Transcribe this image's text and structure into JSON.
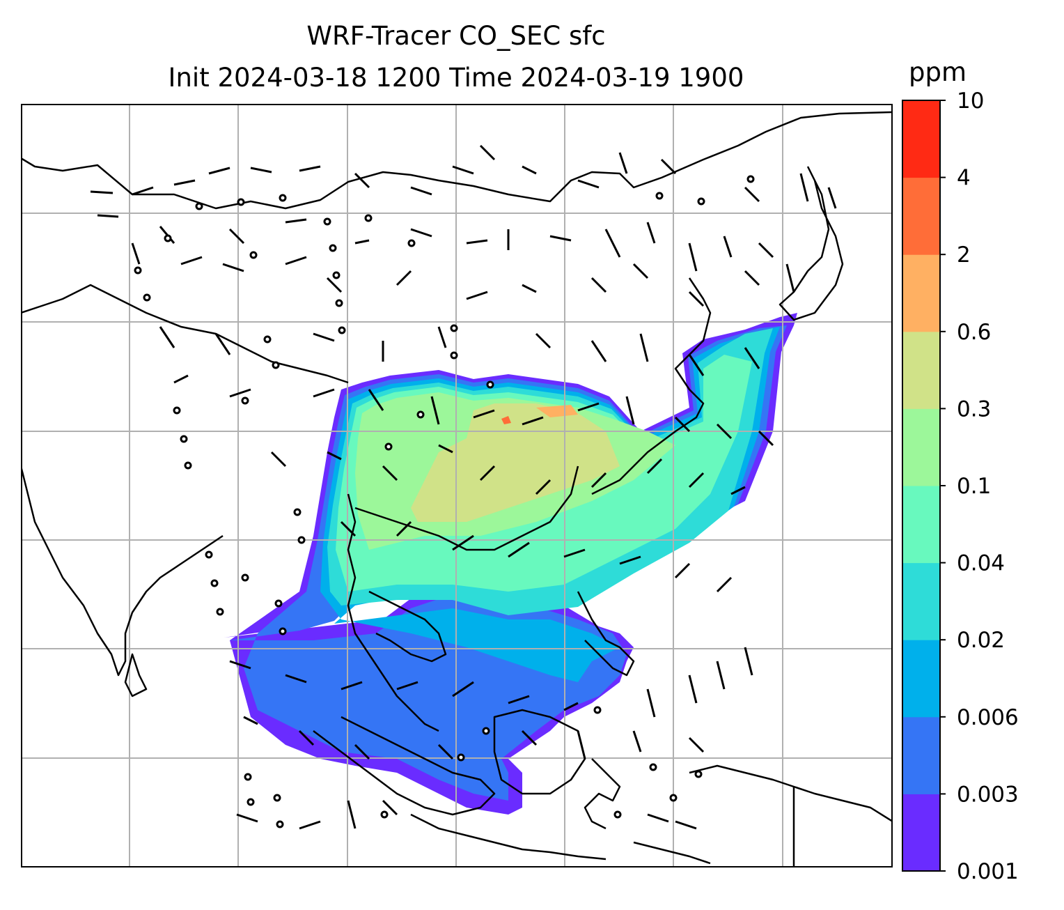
{
  "title_line1": "WRF-Tracer CO_SEC sfc",
  "title_line2": "Init 2024-03-18 1200 Time 2024-03-19 1900",
  "colorbar": {
    "unit": "ppm",
    "levels": [
      "0.001",
      "0.003",
      "0.006",
      "0.02",
      "0.04",
      "0.1",
      "0.3",
      "0.6",
      "2",
      "4",
      "10"
    ],
    "colors": [
      "#6a2cff",
      "#3575f5",
      "#00b0eb",
      "#2edcd8",
      "#68f9be",
      "#9cf79a",
      "#d0e288",
      "#ffb062",
      "#ff6d38",
      "#ff2a14"
    ]
  },
  "map": {
    "gridlines": true,
    "coastline_color": "#000000",
    "grid_color": "#b0b0b0"
  }
}
